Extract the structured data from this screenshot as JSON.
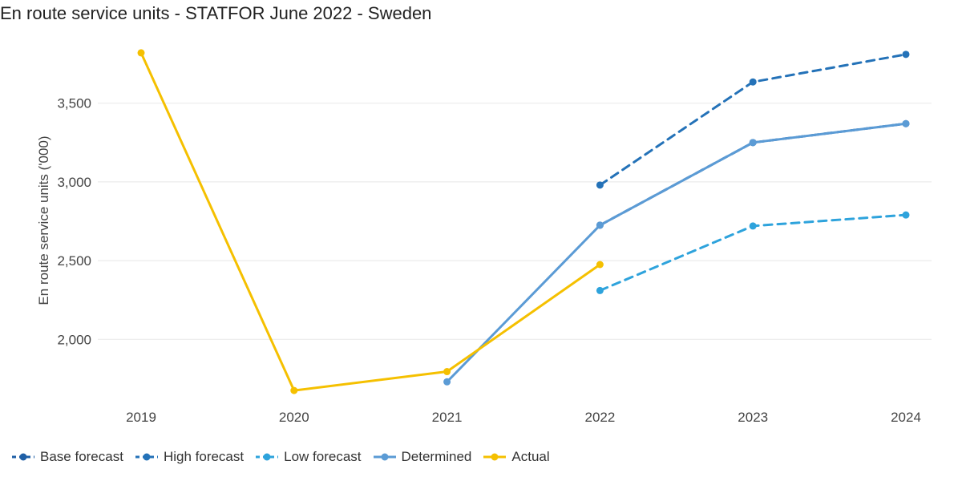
{
  "chart_data": {
    "type": "line",
    "title": "En route service units - STATFOR June 2022 - Sweden",
    "ylabel": "En route service units ('000)",
    "xlabel": "",
    "x": [
      "2019",
      "2020",
      "2021",
      "2022",
      "2023",
      "2024"
    ],
    "ylim": [
      1650,
      3850
    ],
    "yticks": [
      "2,000",
      "2,500",
      "3,000",
      "3,500"
    ],
    "ytick_values": [
      2000,
      2500,
      3000,
      3500
    ],
    "grid": "horizontal",
    "legend_placement": "bottom-left",
    "series": [
      {
        "name": "Base forecast",
        "color": "#1f5fa6",
        "dashed": true,
        "values": [
          null,
          null,
          null,
          2725,
          3250,
          3370
        ]
      },
      {
        "name": "High forecast",
        "color": "#2472b8",
        "dashed": true,
        "values": [
          null,
          null,
          null,
          2980,
          3635,
          3810
        ]
      },
      {
        "name": "Low forecast",
        "color": "#2ea3dc",
        "dashed": true,
        "values": [
          null,
          null,
          null,
          2310,
          2720,
          2790
        ]
      },
      {
        "name": "Determined",
        "color": "#5b9bd5",
        "dashed": false,
        "values": [
          null,
          null,
          1730,
          2725,
          3250,
          3370
        ]
      },
      {
        "name": "Actual",
        "color": "#f5c000",
        "dashed": false,
        "values": [
          3820,
          1675,
          1795,
          2475,
          null,
          null
        ]
      }
    ]
  }
}
